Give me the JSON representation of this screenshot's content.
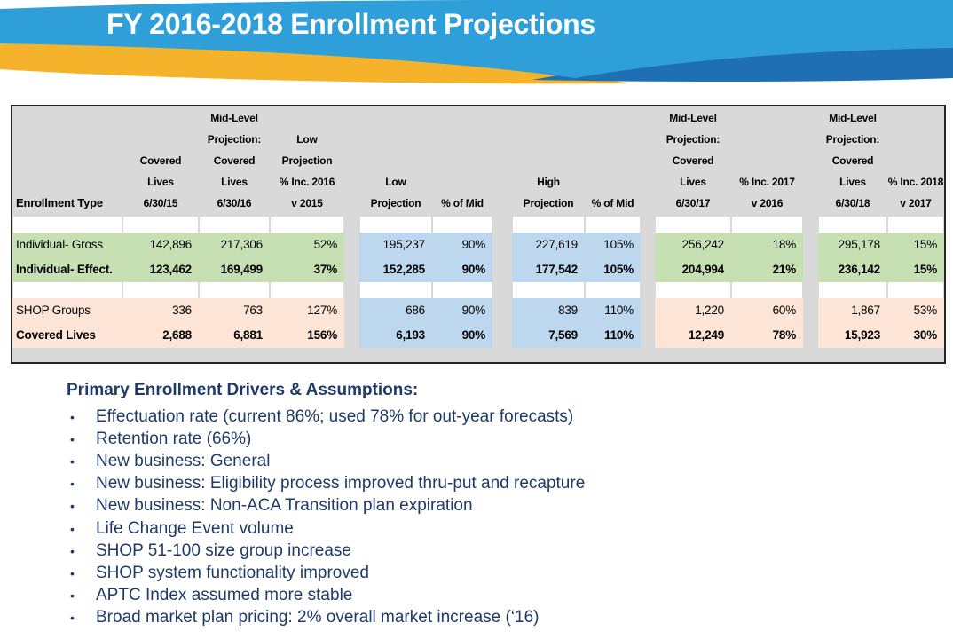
{
  "slide": {
    "title": "FY 2016-2018 Enrollment Projections"
  },
  "colors": {
    "light_blue": "#2E9FD8",
    "dark_blue": "#1E6FB4",
    "gold": "#F4B32A",
    "navy_text": "#1E3A68",
    "table_bg_gray": "#D9D9D9",
    "row_green": "#C6E0B4",
    "row_peach": "#FCE4D6",
    "col_blue": "#BDD7EE",
    "table_border": "#262626"
  },
  "table": {
    "columns": [
      {
        "id": "enrollment-type",
        "lines": [
          "Enrollment Type"
        ]
      },
      {
        "id": "covered-lives-6-30-15",
        "lines": [
          "Covered",
          "Lives",
          "6/30/15"
        ]
      },
      {
        "id": "mid-level-6-30-16",
        "lines": [
          "Mid-Level",
          "Projection:",
          "Covered",
          "Lives",
          "6/30/16"
        ]
      },
      {
        "id": "low-projection-pct-inc-2016",
        "lines": [
          "Low",
          "Projection",
          "% Inc. 2016",
          "v 2015"
        ]
      },
      {
        "id": "low-projection",
        "lines": [
          "Low",
          "Projection"
        ]
      },
      {
        "id": "low-pct-of-mid",
        "lines": [
          "% of Mid"
        ]
      },
      {
        "id": "high-projection",
        "lines": [
          "High",
          "Projection"
        ]
      },
      {
        "id": "high-pct-of-mid",
        "lines": [
          "% of Mid"
        ]
      },
      {
        "id": "mid-level-6-30-17",
        "lines": [
          "Mid-Level",
          "Projection:",
          "Covered",
          "Lives",
          "6/30/17"
        ]
      },
      {
        "id": "pct-inc-2017",
        "lines": [
          "% Inc. 2017",
          "v 2016"
        ]
      },
      {
        "id": "mid-level-6-30-18",
        "lines": [
          "Mid-Level",
          "Projection:",
          "Covered",
          "Lives",
          "6/30/18"
        ]
      },
      {
        "id": "pct-inc-2018",
        "lines": [
          "% Inc. 2018",
          "v 2017"
        ]
      }
    ],
    "rows": [
      {
        "label": "Individual- Gross",
        "bold": false,
        "tone": "green",
        "values": [
          "142,896",
          "217,306",
          "52%",
          "195,237",
          "90%",
          "227,619",
          "105%",
          "256,242",
          "18%",
          "295,178",
          "15%"
        ]
      },
      {
        "label": "Individual- Effect.",
        "bold": true,
        "tone": "green",
        "values": [
          "123,462",
          "169,499",
          "37%",
          "152,285",
          "90%",
          "177,542",
          "105%",
          "204,994",
          "21%",
          "236,142",
          "15%"
        ]
      },
      {
        "label": "SHOP Groups",
        "bold": false,
        "tone": "peach",
        "values": [
          "336",
          "763",
          "127%",
          "686",
          "90%",
          "839",
          "110%",
          "1,220",
          "60%",
          "1,867",
          "53%"
        ]
      },
      {
        "label": "Covered Lives",
        "bold": true,
        "tone": "peach",
        "values": [
          "2,688",
          "6,881",
          "156%",
          "6,193",
          "90%",
          "7,569",
          "110%",
          "12,249",
          "78%",
          "15,923",
          "30%"
        ]
      }
    ]
  },
  "drivers": {
    "heading": "Primary Enrollment Drivers & Assumptions:",
    "bullets": [
      "Effectuation rate (current 86%; used 78% for out-year forecasts)",
      "Retention rate (66%)",
      "New business: General",
      "New business: Eligibility process improved thru-put and recapture",
      "New business: Non-ACA Transition plan expiration",
      "Life Change Event volume",
      "SHOP 51-100 size group increase",
      "SHOP system functionality improved",
      "APTC Index assumed more stable",
      "Broad market plan pricing: 2% overall market increase (‘16)"
    ]
  }
}
